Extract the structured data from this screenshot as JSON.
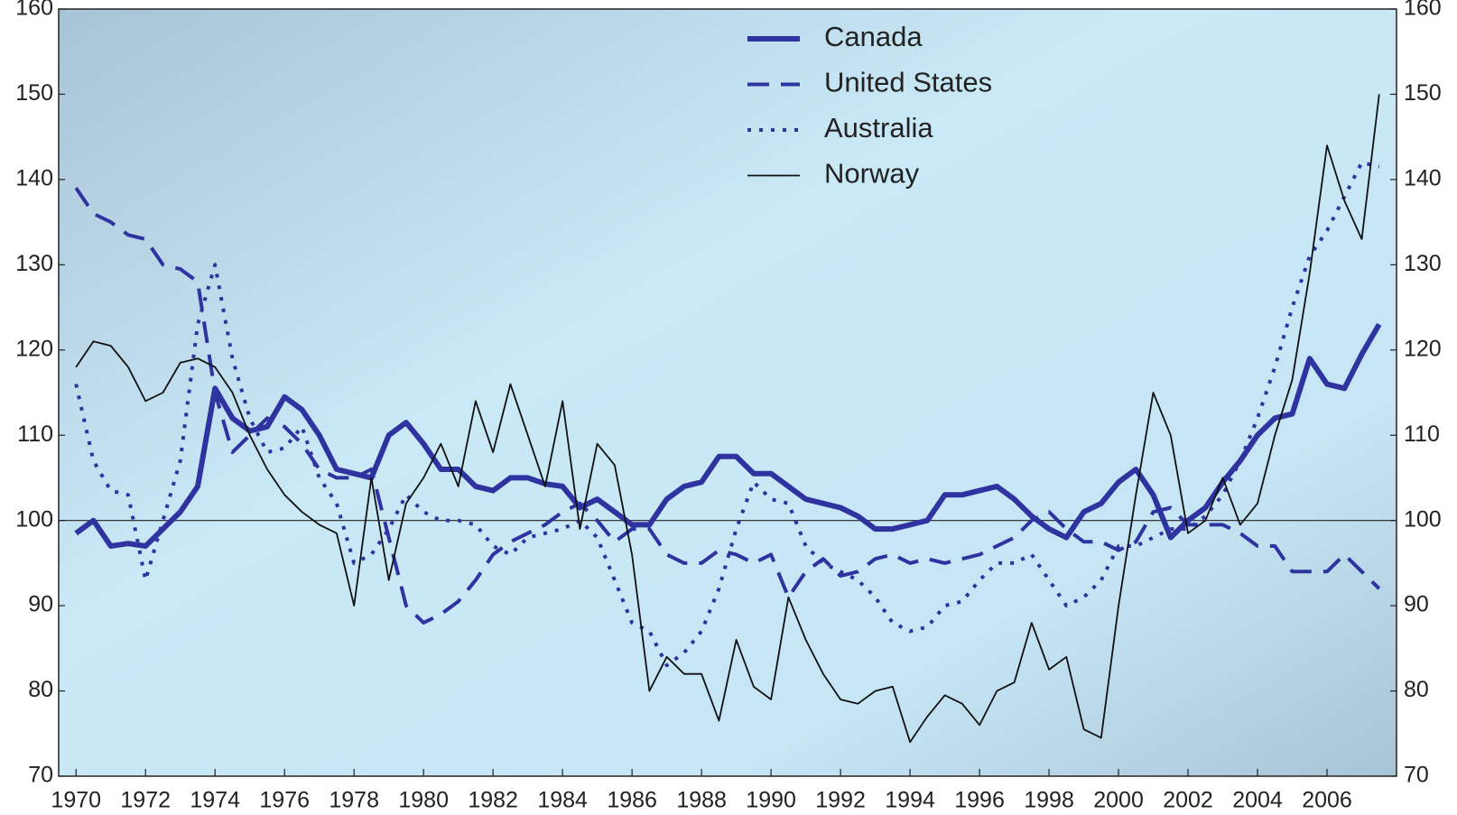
{
  "chart_data": {
    "type": "line",
    "x": [
      1970,
      1970.5,
      1971,
      1971.5,
      1972,
      1972.5,
      1973,
      1973.5,
      1974,
      1974.5,
      1975,
      1975.5,
      1976,
      1976.5,
      1977,
      1977.5,
      1978,
      1978.5,
      1979,
      1979.5,
      1980,
      1980.5,
      1981,
      1981.5,
      1982,
      1982.5,
      1983,
      1983.5,
      1984,
      1984.5,
      1985,
      1985.5,
      1986,
      1986.5,
      1987,
      1987.5,
      1988,
      1988.5,
      1989,
      1989.5,
      1990,
      1990.5,
      1991,
      1991.5,
      1992,
      1992.5,
      1993,
      1993.5,
      1994,
      1994.5,
      1995,
      1995.5,
      1996,
      1996.5,
      1997,
      1997.5,
      1998,
      1998.5,
      1999,
      1999.5,
      2000,
      2000.5,
      2001,
      2001.5,
      2002,
      2002.5,
      2003,
      2003.5,
      2004,
      2004.5,
      2005,
      2005.5,
      2006,
      2006.5,
      2007,
      2007.5
    ],
    "series": [
      {
        "name": "Canada",
        "color": "#2f33a0",
        "style": "solid",
        "width": 6,
        "values": [
          98.5,
          100,
          97,
          97.3,
          97,
          99,
          101,
          104,
          115.5,
          112,
          110.5,
          111,
          114.5,
          113,
          110,
          106,
          105.5,
          105,
          110,
          111.5,
          109,
          106,
          106,
          104,
          103.5,
          105,
          105,
          104.3,
          104,
          101.5,
          102.5,
          101,
          99.5,
          99.5,
          102.5,
          104,
          104.5,
          107.5,
          107.5,
          105.5,
          105.5,
          104,
          102.5,
          102,
          101.5,
          100.5,
          99,
          99,
          99.5,
          100,
          103,
          103,
          103.5,
          104,
          102.5,
          100.5,
          99,
          98,
          101,
          102,
          104.5,
          106,
          103,
          98,
          100,
          101.5,
          104.5,
          107,
          110,
          112,
          112.5,
          119,
          116,
          115.5,
          119.5,
          123
        ]
      },
      {
        "name": "United States",
        "color": "#2f33a0",
        "style": "dashed",
        "width": 4,
        "values": [
          139,
          136,
          135,
          133.5,
          133,
          130,
          129.5,
          128,
          115,
          108,
          110,
          112,
          111,
          109,
          106,
          105,
          105,
          106,
          98,
          90,
          88,
          89,
          90.5,
          93,
          96,
          97.5,
          98.5,
          99.5,
          101,
          102,
          100,
          97.5,
          99,
          99,
          96,
          95,
          95,
          96.5,
          96,
          95,
          96,
          91,
          94,
          95.5,
          93.5,
          94,
          95.5,
          96,
          95,
          95.5,
          95,
          95.5,
          96,
          97,
          98,
          100,
          101,
          99,
          97.5,
          97.5,
          96.5,
          97.5,
          101,
          101.5,
          99.5,
          99.5,
          99.5,
          98.5,
          97,
          97,
          94,
          94,
          94,
          96,
          94,
          92
        ]
      },
      {
        "name": "Australia",
        "color": "#2f33a0",
        "style": "dotted",
        "width": 4,
        "values": [
          116,
          107,
          103.5,
          103,
          93,
          100,
          107,
          123,
          130,
          119,
          112,
          108,
          108.5,
          111,
          105,
          102,
          95,
          96,
          99,
          103,
          101,
          100,
          100,
          99.5,
          97,
          96,
          98,
          98.5,
          99,
          100,
          98,
          93,
          88,
          87,
          83,
          84.5,
          87,
          92,
          99,
          104.5,
          102.5,
          102,
          97,
          95,
          94,
          93,
          91,
          88,
          87,
          87.5,
          90,
          90.5,
          93,
          95,
          95,
          96,
          93,
          90,
          91,
          93,
          97,
          97,
          98,
          99,
          99,
          100.5,
          103,
          107,
          112,
          118,
          125,
          131,
          134,
          138,
          142,
          141.5
        ]
      },
      {
        "name": "Norway",
        "color": "#111111",
        "style": "solid",
        "width": 1.8,
        "values": [
          118,
          121,
          120.5,
          118,
          114,
          115,
          118.5,
          119,
          118,
          115,
          110,
          106,
          103,
          101,
          99.5,
          98.5,
          90,
          105,
          93,
          102,
          105,
          109,
          104,
          114,
          108,
          116,
          110,
          104,
          114,
          99,
          109,
          106.5,
          96,
          80,
          84,
          82,
          82,
          76.5,
          86,
          80.5,
          79,
          91,
          86,
          82,
          79,
          78.5,
          80,
          80.5,
          74,
          77,
          79.5,
          78.5,
          76,
          80,
          81,
          88,
          82.5,
          84,
          75.5,
          74.5,
          90,
          103,
          115,
          110,
          98.5,
          100,
          105,
          99.5,
          102,
          110,
          116.5,
          129,
          144,
          137.5,
          133,
          150
        ]
      }
    ],
    "xlim": [
      1969.5,
      2008
    ],
    "xticks": [
      1970,
      1972,
      1974,
      1976,
      1978,
      1980,
      1982,
      1984,
      1986,
      1988,
      1990,
      1992,
      1994,
      1996,
      1998,
      2000,
      2002,
      2004,
      2006
    ],
    "ylim": [
      70,
      160
    ],
    "yticks": [
      70,
      80,
      90,
      100,
      110,
      120,
      130,
      140,
      150,
      160
    ],
    "y2lim": [
      70,
      160
    ],
    "y2ticks": [
      70,
      80,
      90,
      100,
      110,
      120,
      130,
      140,
      150,
      160
    ],
    "hline": 100,
    "legend": "top"
  }
}
